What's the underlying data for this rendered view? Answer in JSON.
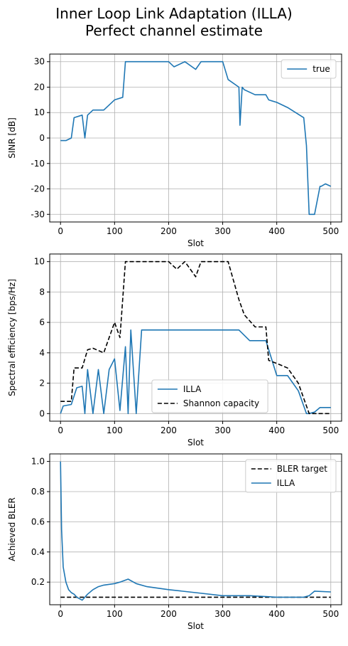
{
  "figure": {
    "title_line1": "Inner Loop Link Adaptation (ILLA)",
    "title_line2": "Perfect channel estimate"
  },
  "colors": {
    "blue": "#1f77b4",
    "black": "#000000",
    "grid": "#b0b0b0"
  },
  "chart_data": [
    {
      "type": "line",
      "xlabel": "Slot",
      "ylabel": "SINR [dB]",
      "xlim": [
        -20,
        520
      ],
      "ylim": [
        -33,
        33
      ],
      "xticks": [
        0,
        100,
        200,
        300,
        400,
        500
      ],
      "yticks": [
        -30,
        -20,
        -10,
        0,
        10,
        20,
        30
      ],
      "grid": true,
      "legend": "top-right",
      "series": [
        {
          "name": "true",
          "color": "#1f77b4",
          "dash": "solid",
          "x": [
            0,
            10,
            20,
            25,
            40,
            45,
            50,
            60,
            80,
            100,
            115,
            120,
            200,
            210,
            230,
            250,
            260,
            280,
            300,
            310,
            330,
            332,
            336,
            340,
            360,
            380,
            385,
            400,
            420,
            450,
            455,
            460,
            470,
            480,
            482,
            490,
            500
          ],
          "y": [
            -1,
            -1,
            0,
            8,
            9,
            0,
            9,
            11,
            11,
            15,
            16,
            30,
            30,
            28,
            30,
            27,
            30,
            30,
            30,
            23,
            20,
            5,
            20,
            19,
            17,
            17,
            15,
            14,
            12,
            8,
            -3,
            -30,
            -30,
            -19,
            -19,
            -18,
            -19
          ]
        }
      ]
    },
    {
      "type": "line",
      "xlabel": "Slot",
      "ylabel": "Spectral efficiency [bps/Hz]",
      "xlim": [
        -20,
        520
      ],
      "ylim": [
        -0.5,
        10.5
      ],
      "xticks": [
        0,
        100,
        200,
        300,
        400,
        500
      ],
      "yticks": [
        0,
        2,
        4,
        6,
        8,
        10
      ],
      "grid": true,
      "legend": "lower-center",
      "series": [
        {
          "name": "ILLA",
          "color": "#1f77b4",
          "dash": "solid",
          "x": [
            0,
            5,
            20,
            30,
            40,
            45,
            50,
            60,
            70,
            80,
            90,
            100,
            110,
            120,
            125,
            130,
            140,
            150,
            170,
            200,
            240,
            280,
            300,
            330,
            350,
            370,
            380,
            400,
            420,
            440,
            450,
            455,
            460,
            470,
            480,
            500
          ],
          "y": [
            0,
            0.5,
            0.6,
            1.7,
            1.8,
            0,
            2.9,
            0,
            2.9,
            0,
            2.9,
            3.6,
            0.2,
            4.4,
            0,
            5.5,
            0,
            5.5,
            5.5,
            5.5,
            5.5,
            5.5,
            5.5,
            5.5,
            4.8,
            4.8,
            4.8,
            2.5,
            2.5,
            1.5,
            0.5,
            0,
            0,
            0.1,
            0.4,
            0.4
          ]
        },
        {
          "name": "Shannon capacity",
          "color": "#000000",
          "dash": "dashed",
          "x": [
            0,
            20,
            25,
            40,
            50,
            60,
            80,
            100,
            110,
            120,
            130,
            200,
            215,
            230,
            250,
            260,
            310,
            330,
            340,
            360,
            380,
            385,
            400,
            420,
            440,
            450,
            455,
            460,
            500
          ],
          "y": [
            0.8,
            0.8,
            3.0,
            3.0,
            4.2,
            4.3,
            4.0,
            6.0,
            5.0,
            10.0,
            10.0,
            10.0,
            9.5,
            10.0,
            9.0,
            10.0,
            10.0,
            7.5,
            6.5,
            5.7,
            5.7,
            3.5,
            3.3,
            3.0,
            2.0,
            1.0,
            0.5,
            0.0,
            0.0
          ]
        }
      ]
    },
    {
      "type": "line",
      "xlabel": "Slot",
      "ylabel": "Achieved BLER",
      "xlim": [
        -20,
        520
      ],
      "ylim": [
        0.05,
        1.05
      ],
      "xticks": [
        0,
        100,
        200,
        300,
        400,
        500
      ],
      "yticks": [
        0.2,
        0.4,
        0.6,
        0.8,
        1.0
      ],
      "ytick_labels": [
        "0.2",
        "0.4",
        "0.6",
        "0.8",
        "1.0"
      ],
      "grid": true,
      "legend": "top-right",
      "series": [
        {
          "name": "BLER target",
          "color": "#000000",
          "dash": "dashed",
          "x": [
            0,
            500
          ],
          "y": [
            0.1,
            0.1
          ]
        },
        {
          "name": "ILLA",
          "color": "#1f77b4",
          "dash": "solid",
          "x": [
            0,
            2,
            5,
            10,
            15,
            20,
            25,
            30,
            40,
            50,
            60,
            70,
            80,
            100,
            110,
            125,
            140,
            160,
            200,
            250,
            300,
            350,
            400,
            450,
            460,
            470,
            500
          ],
          "y": [
            1.0,
            0.55,
            0.3,
            0.2,
            0.15,
            0.13,
            0.12,
            0.1,
            0.08,
            0.12,
            0.15,
            0.17,
            0.18,
            0.19,
            0.2,
            0.22,
            0.19,
            0.17,
            0.15,
            0.13,
            0.11,
            0.11,
            0.1,
            0.1,
            0.11,
            0.14,
            0.135
          ]
        }
      ]
    }
  ]
}
